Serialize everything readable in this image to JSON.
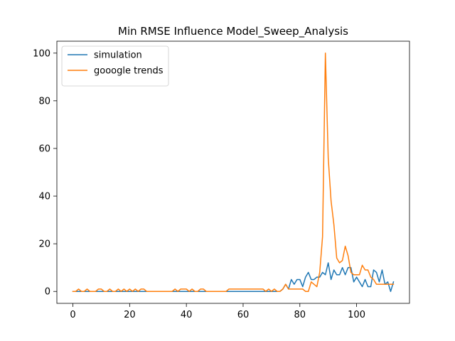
{
  "chart_data": {
    "type": "line",
    "title": "Min RMSE Influence Model_Sweep_Analysis",
    "xlabel": "",
    "ylabel": "",
    "xlim": [
      -5.65,
      118.65
    ],
    "ylim": [
      -5,
      105
    ],
    "xticks": [
      0,
      20,
      40,
      60,
      80,
      100
    ],
    "yticks": [
      0,
      20,
      40,
      60,
      80,
      100
    ],
    "grid": false,
    "legend_position": "top-left",
    "series": [
      {
        "name": "simulation",
        "color": "#1f77b4",
        "values": [
          0,
          0,
          0,
          0,
          0,
          0,
          0,
          0,
          0,
          0,
          0,
          0,
          0,
          0,
          0,
          0,
          0,
          0,
          0,
          0,
          0,
          0,
          0,
          0,
          0,
          0,
          0,
          0,
          0,
          0,
          0,
          0,
          0,
          0,
          0,
          0,
          0,
          0,
          0,
          0,
          0,
          0,
          0,
          0,
          0,
          0,
          0,
          0,
          0,
          0,
          0,
          0,
          0,
          0,
          0,
          0,
          0,
          0,
          0,
          0,
          0,
          0,
          0,
          0,
          0,
          0,
          0,
          0,
          0,
          0,
          0,
          0,
          0,
          0,
          1,
          3,
          1,
          5,
          3,
          5,
          5,
          2,
          6,
          8,
          5,
          5,
          6,
          6,
          8,
          7,
          12,
          5,
          9,
          7,
          7,
          10,
          7,
          10,
          10,
          4,
          6,
          4,
          2,
          5,
          2,
          2,
          9,
          8,
          4,
          9,
          3,
          4,
          0,
          4
        ]
      },
      {
        "name": "gooogle trends",
        "color": "#ff7f0e",
        "values": [
          0,
          0,
          1,
          0,
          0,
          1,
          0,
          0,
          0,
          1,
          1,
          0,
          0,
          1,
          0,
          0,
          1,
          0,
          1,
          0,
          1,
          0,
          1,
          0,
          1,
          1,
          0,
          0,
          0,
          0,
          0,
          0,
          0,
          0,
          0,
          0,
          1,
          0,
          1,
          1,
          1,
          0,
          1,
          0,
          0,
          1,
          1,
          0,
          0,
          0,
          0,
          0,
          0,
          0,
          0,
          1,
          1,
          1,
          1,
          1,
          1,
          1,
          1,
          1,
          1,
          1,
          1,
          1,
          0,
          1,
          0,
          1,
          0,
          0,
          1,
          3,
          1,
          1,
          1,
          1,
          1,
          1,
          0,
          0,
          4,
          3,
          2,
          8,
          23,
          100,
          56,
          38,
          28,
          14,
          12,
          13,
          19,
          15,
          8,
          7,
          7,
          7,
          11,
          9,
          9,
          6,
          5,
          3,
          3,
          3,
          3,
          3,
          3,
          3
        ]
      }
    ]
  }
}
